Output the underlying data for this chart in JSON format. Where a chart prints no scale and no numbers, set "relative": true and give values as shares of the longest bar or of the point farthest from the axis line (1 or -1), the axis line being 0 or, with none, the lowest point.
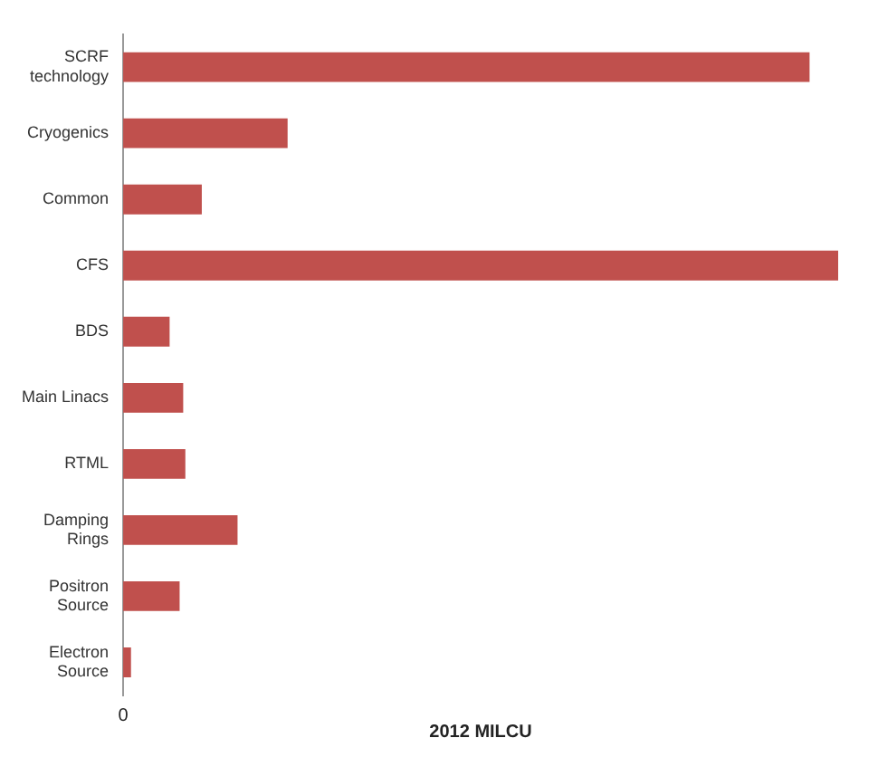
{
  "chart_data": {
    "type": "bar",
    "orientation": "horizontal",
    "relative": true,
    "xlabel": "2012 MILCU",
    "categories": [
      "SCRF technology",
      "Cryogenics",
      "Common",
      "CFS",
      "BDS",
      "Main Linacs",
      "RTML",
      "Damping Rings",
      "Positron Source",
      "Electron Source"
    ],
    "values": [
      0.96,
      0.23,
      0.11,
      1,
      0.065,
      0.084,
      0.087,
      0.16,
      0.079,
      0.011
    ],
    "color": "#c0504d",
    "grid": false,
    "legend": false,
    "annotations": [
      "0"
    ]
  }
}
